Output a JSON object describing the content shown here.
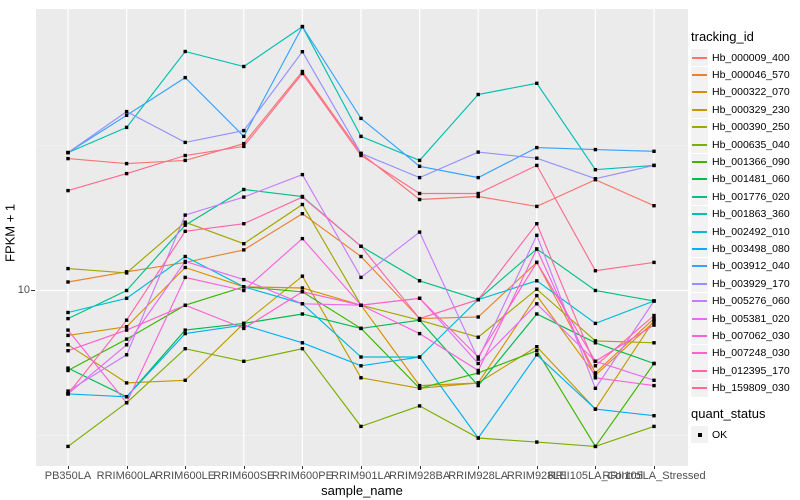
{
  "figure": {
    "y_axis": {
      "title": "FPKM + 1",
      "tick_labels": [
        "10"
      ]
    },
    "x_axis": {
      "title": "sample_name"
    },
    "legend": {
      "tracking_title": "tracking_id",
      "quant_title": "quant_status",
      "quant_items": [
        {
          "label": "OK",
          "marker": "black-square"
        }
      ]
    },
    "colors": {
      "panel_background": "#EBEBEB",
      "grid_major": "#FFFFFF",
      "grid_minor": "#F5F5F5",
      "axis_text": "#4D4D4D",
      "title_text": "#000000",
      "legend_key_background": "#F2F2F2",
      "point_marker": "#000000"
    }
  },
  "chart_data": {
    "type": "line",
    "title": "",
    "xlabel": "sample_name",
    "ylabel": "FPKM + 1",
    "y_scale": "log10",
    "y_breaks": [
      10
    ],
    "y_minor_breaks": [
      3.162,
      31.62
    ],
    "ylim": [
      2.5,
      95
    ],
    "grid": "white major+minor on gray panel",
    "legend_position": "right",
    "marker": "small black square (quant_status OK)",
    "categories": [
      "PB350LA",
      "RRIM600LA",
      "RRIM600LE",
      "RRIM600SE",
      "RRIM600PE",
      "RRIM901LA",
      "RRIM928BA",
      "RRIM928LA",
      "RRIM928LE",
      "RRII105LA_Control",
      "RRII105LA_Stressed"
    ],
    "series": [
      {
        "name": "Hb_000009_400",
        "color": "#F8766D",
        "values": [
          28.5,
          27.4,
          28.1,
          32.1,
          56.9,
          29.7,
          20.6,
          21.1,
          19.5,
          24.1,
          19.6
        ]
      },
      {
        "name": "Hb_000046_570",
        "color": "#EA8331",
        "values": [
          10.7,
          11.6,
          12.5,
          13.8,
          18.4,
          13.1,
          8.0,
          8.1,
          12.5,
          5.2,
          8.0
        ]
      },
      {
        "name": "Hb_000322_070",
        "color": "#D89000",
        "values": [
          7.0,
          7.5,
          12.0,
          10.3,
          10.2,
          8.9,
          4.7,
          4.8,
          9.6,
          5.1,
          7.8
        ]
      },
      {
        "name": "Hb_000329_230",
        "color": "#C09B00",
        "values": [
          6.5,
          4.8,
          4.9,
          7.7,
          11.2,
          5.0,
          4.6,
          4.8,
          6.4,
          3.9,
          7.9
        ]
      },
      {
        "name": "Hb_000390_250",
        "color": "#A3A500",
        "values": [
          11.9,
          11.5,
          17.2,
          14.5,
          19.8,
          8.9,
          7.9,
          6.9,
          10.1,
          6.7,
          6.6
        ]
      },
      {
        "name": "Hb_000635_040",
        "color": "#7CAE00",
        "values": [
          2.9,
          4.1,
          6.3,
          5.7,
          6.3,
          3.4,
          4.0,
          3.1,
          3.0,
          2.9,
          3.4
        ]
      },
      {
        "name": "Hb_001366_090",
        "color": "#39B600",
        "values": [
          5.3,
          6.8,
          8.9,
          10.3,
          9.9,
          7.4,
          4.6,
          5.2,
          6.2,
          2.9,
          5.6
        ]
      },
      {
        "name": "Hb_001481_060",
        "color": "#00BB4E",
        "values": [
          5.4,
          4.3,
          7.3,
          7.7,
          8.3,
          7.4,
          7.9,
          4.7,
          8.3,
          6.6,
          5.6
        ]
      },
      {
        "name": "Hb_001776_020",
        "color": "#00C087",
        "values": [
          8.0,
          10.0,
          16.8,
          22.3,
          21.1,
          14.2,
          10.8,
          9.3,
          13.9,
          10.0,
          9.2
        ]
      },
      {
        "name": "Hb_001863_360",
        "color": "#00C0AF",
        "values": [
          29.9,
          36.5,
          66.7,
          59.2,
          81.3,
          34.0,
          28.1,
          47.4,
          51.8,
          26.1,
          27.0
        ]
      },
      {
        "name": "Hb_002492_010",
        "color": "#00BCD8",
        "values": [
          8.4,
          9.4,
          13.1,
          10.3,
          9.0,
          5.9,
          5.9,
          9.3,
          10.8,
          7.7,
          9.2
        ]
      },
      {
        "name": "Hb_003498_080",
        "color": "#00B0F6",
        "values": [
          4.4,
          4.3,
          7.1,
          7.6,
          6.6,
          5.5,
          5.9,
          3.1,
          6.0,
          3.9,
          3.7
        ]
      },
      {
        "name": "Hb_003912_040",
        "color": "#35A2FF",
        "values": [
          29.9,
          40.2,
          54.2,
          34.0,
          81.3,
          39.2,
          26.8,
          24.5,
          31.1,
          30.6,
          30.2
        ]
      },
      {
        "name": "Hb_003929_170",
        "color": "#9590FF",
        "values": [
          29.9,
          41.4,
          32.4,
          35.6,
          66.6,
          29.7,
          24.5,
          30.0,
          28.6,
          24.3,
          27.0
        ]
      },
      {
        "name": "Hb_005276_060",
        "color": "#C77CFF",
        "values": [
          4.5,
          6.0,
          18.2,
          21.0,
          25.1,
          11.1,
          15.9,
          5.8,
          15.5,
          4.6,
          9.2
        ]
      },
      {
        "name": "Hb_005381_020",
        "color": "#E76BF3",
        "values": [
          4.4,
          6.5,
          12.6,
          10.9,
          9.0,
          8.9,
          9.4,
          5.6,
          9.0,
          5.7,
          4.9
        ]
      },
      {
        "name": "Hb_007062_030",
        "color": "#FA62DB",
        "values": [
          7.3,
          4.1,
          11.1,
          10.0,
          15.1,
          8.9,
          7.1,
          5.3,
          13.9,
          5.0,
          4.7
        ]
      },
      {
        "name": "Hb_007248_030",
        "color": "#FF61C9",
        "values": [
          6.2,
          7.3,
          8.9,
          7.4,
          9.9,
          8.9,
          9.4,
          5.9,
          12.5,
          5.7,
          7.6
        ]
      },
      {
        "name": "Hb_012395_170",
        "color": "#FF66A8",
        "values": [
          4.4,
          7.9,
          16.0,
          17.0,
          21.0,
          14.2,
          8.0,
          9.3,
          17.0,
          5.5,
          8.2
        ]
      },
      {
        "name": "Hb_159809_030",
        "color": "#FF6C90",
        "values": [
          22.1,
          25.3,
          29.2,
          31.4,
          56.0,
          29.2,
          21.6,
          21.6,
          27.0,
          11.7,
          12.5
        ]
      }
    ]
  }
}
